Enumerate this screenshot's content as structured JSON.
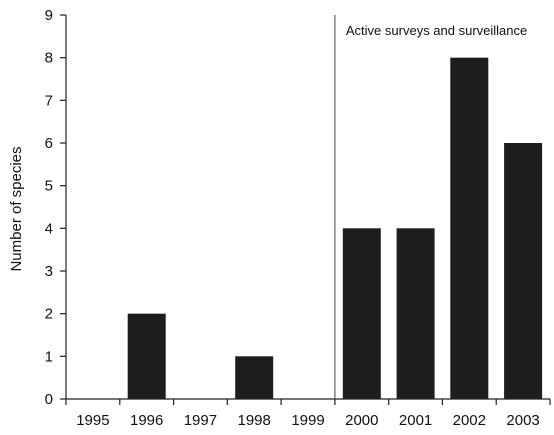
{
  "chart_data": {
    "type": "bar",
    "categories": [
      "1995",
      "1996",
      "1997",
      "1998",
      "1999",
      "2000",
      "2001",
      "2002",
      "2003"
    ],
    "values": [
      0,
      2,
      0,
      1,
      0,
      4,
      4,
      8,
      6
    ],
    "title": "",
    "xlabel": "",
    "ylabel": "Number of species",
    "ylim": [
      0,
      9
    ],
    "yticks": [
      0,
      1,
      2,
      3,
      4,
      5,
      6,
      7,
      8,
      9
    ],
    "grid": false,
    "bar_color": "#1d1d1d",
    "annotation": {
      "text": "Active surveys and surveillance",
      "divider_after_category": "1999"
    }
  }
}
